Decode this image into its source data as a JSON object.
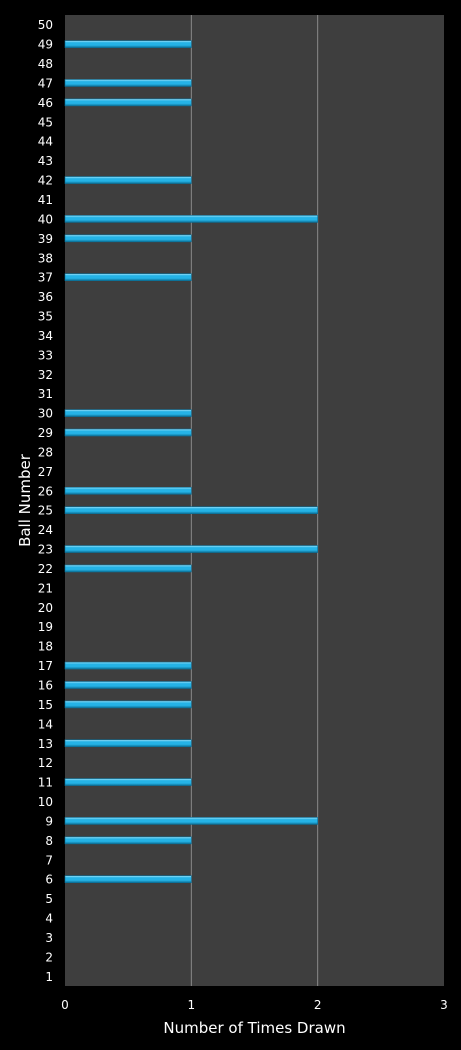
{
  "chart_data": {
    "type": "bar",
    "orientation": "horizontal",
    "title": "",
    "xlabel": "Number of Times Drawn",
    "ylabel": "Ball Number",
    "xlim": [
      0,
      3
    ],
    "x_ticks": [
      0,
      1,
      2,
      3
    ],
    "grid": "vertical",
    "legend": "none",
    "colors": {
      "background": "#000000",
      "plot_area": "#3e3e3e",
      "bar": "#25b3e6",
      "bar_highlight": "#9ee3fb",
      "bar_shadow": "#0b6f96",
      "gridline": "#8a8a8a",
      "text": "#ffffff"
    },
    "categories": [
      "1",
      "2",
      "3",
      "4",
      "5",
      "6",
      "7",
      "8",
      "9",
      "10",
      "11",
      "12",
      "13",
      "14",
      "15",
      "16",
      "17",
      "18",
      "19",
      "20",
      "21",
      "22",
      "23",
      "24",
      "25",
      "26",
      "27",
      "28",
      "29",
      "30",
      "31",
      "32",
      "33",
      "34",
      "35",
      "36",
      "37",
      "38",
      "39",
      "40",
      "41",
      "42",
      "43",
      "44",
      "45",
      "46",
      "47",
      "48",
      "49",
      "50"
    ],
    "values": [
      0,
      0,
      0,
      0,
      0,
      1,
      0,
      1,
      2,
      0,
      1,
      0,
      1,
      0,
      1,
      1,
      1,
      0,
      0,
      0,
      0,
      1,
      2,
      0,
      2,
      1,
      0,
      0,
      1,
      1,
      0,
      0,
      0,
      0,
      0,
      0,
      1,
      0,
      1,
      2,
      0,
      1,
      0,
      0,
      0,
      1,
      1,
      0,
      1,
      0
    ]
  }
}
